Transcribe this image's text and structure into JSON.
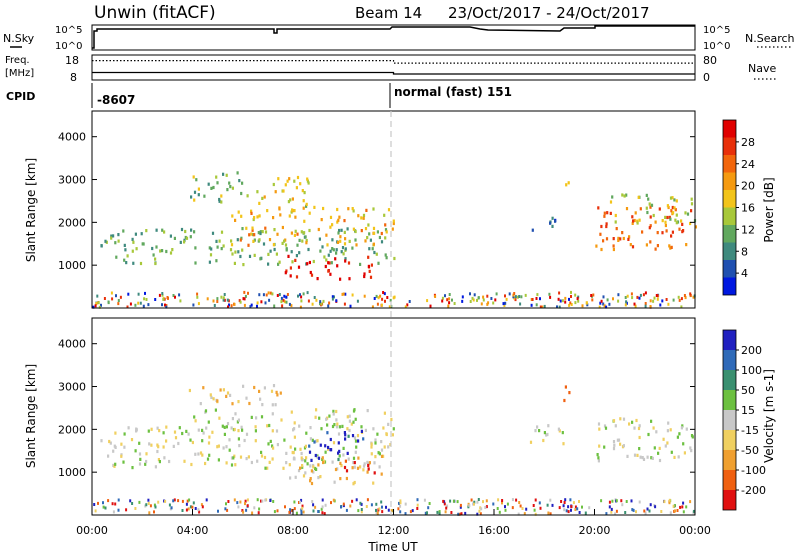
{
  "header": {
    "title": "Unwin (fitACF)",
    "beam": "Beam 14",
    "dates": "23/Oct/2017 - 24/Oct/2017"
  },
  "status_panels": {
    "nsky_label": "N.Sky",
    "nsearch_label": "N.Search",
    "freq_label_line1": "Freq.",
    "freq_label_line2": "[MHz]",
    "nave_label": "Nave",
    "cpid_label": "CPID",
    "nsky_ticks": [
      "10^5",
      "10^0"
    ],
    "nsearch_ticks": [
      "10^5",
      "10^0"
    ],
    "freq_ticks": [
      "18",
      "8"
    ],
    "nave_ticks": [
      "80",
      "0"
    ],
    "cpid_values": [
      {
        "text": "-8607",
        "start_hour": 0
      },
      {
        "text": "normal (fast) 151",
        "start_hour": 12
      }
    ],
    "freq_series": [
      {
        "hour": 0,
        "mhz": 11.0
      },
      {
        "hour": 12,
        "mhz": 11.0
      },
      {
        "hour": 12,
        "mhz": 10.4
      },
      {
        "hour": 24,
        "mhz": 10.4
      }
    ],
    "nave_series": [
      {
        "hour": 0,
        "nave": 62
      },
      {
        "hour": 12,
        "nave": 62
      },
      {
        "hour": 12,
        "nave": 54
      },
      {
        "hour": 24,
        "nave": 54
      }
    ]
  },
  "chart_data": [
    {
      "type": "heatmap",
      "name": "power",
      "xlabel": "",
      "ylabel": "Slant Range [km]",
      "xlim": [
        0,
        24
      ],
      "ylim": [
        0,
        4600
      ],
      "yticks": [
        "1000",
        "2000",
        "3000",
        "4000"
      ],
      "colorbar_label": "Power [dB]",
      "colorbar_ticks": [
        "4",
        "8",
        "12",
        "16",
        "20",
        "24",
        "28"
      ],
      "colorbar_colors": [
        "#0018e0",
        "#2050b0",
        "#3f8a7e",
        "#61a85e",
        "#a8c83a",
        "#f2c41a",
        "#f59a10",
        "#f2660c",
        "#e8300a",
        "#e00000"
      ],
      "regions": [
        {
          "x0": 0.3,
          "x1": 12.0,
          "y0": 1050,
          "y1": 1900,
          "level": 0.35
        },
        {
          "x0": 5.5,
          "x1": 12.0,
          "y0": 1500,
          "y1": 2400,
          "level": 0.6
        },
        {
          "x0": 7.6,
          "x1": 11.2,
          "y0": 700,
          "y1": 1250,
          "level": 0.95
        },
        {
          "x0": 6.5,
          "x1": 8.8,
          "y0": 2400,
          "y1": 3100,
          "level": 0.5
        },
        {
          "x0": 3.8,
          "x1": 6.2,
          "y0": 2500,
          "y1": 3200,
          "level": 0.4
        },
        {
          "x0": 17.5,
          "x1": 18.5,
          "y0": 1800,
          "y1": 2200,
          "level": 0.15
        },
        {
          "x0": 18.6,
          "x1": 19.0,
          "y0": 2700,
          "y1": 3000,
          "level": 0.6
        },
        {
          "x0": 20.0,
          "x1": 24.0,
          "y0": 1400,
          "y1": 2400,
          "level": 0.75
        },
        {
          "x0": 20.5,
          "x1": 24.0,
          "y0": 2000,
          "y1": 2700,
          "level": 0.45
        }
      ]
    },
    {
      "type": "heatmap",
      "name": "velocity",
      "xlabel": "Time UT",
      "ylabel": "Slant Range [km]",
      "xlim": [
        0,
        24
      ],
      "ylim": [
        0,
        4600
      ],
      "xticks": [
        "00:00",
        "04:00",
        "08:00",
        "12:00",
        "16:00",
        "20:00",
        "00:00"
      ],
      "yticks": [
        "1000",
        "2000",
        "3000",
        "4000"
      ],
      "colorbar_label": "Velocity [m s-1]",
      "colorbar_ticks": [
        "200",
        "100",
        "50",
        "15",
        "-15",
        "-50",
        "-100",
        "-200"
      ],
      "colorbar_colors": [
        "#2020c0",
        "#2f6ab8",
        "#3a9070",
        "#6cc040",
        "#c8c8c8",
        "#f0d060",
        "#f0a030",
        "#f06010",
        "#e01010"
      ],
      "regions": [
        {
          "x0": 0.3,
          "x1": 12.0,
          "y0": 1100,
          "y1": 2100,
          "level": 0.5
        },
        {
          "x0": 4.0,
          "x1": 12.0,
          "y0": 2000,
          "y1": 2500,
          "level": 0.5
        },
        {
          "x0": 3.8,
          "x1": 7.5,
          "y0": 2600,
          "y1": 3100,
          "level": 0.6
        },
        {
          "x0": 7.8,
          "x1": 11.5,
          "y0": 750,
          "y1": 1450,
          "level": 0.62
        },
        {
          "x0": 10.0,
          "x1": 11.4,
          "y0": 1000,
          "y1": 1300,
          "level": 0.95
        },
        {
          "x0": 8.6,
          "x1": 10.8,
          "y0": 1300,
          "y1": 2000,
          "level": 0.1
        },
        {
          "x0": 18.6,
          "x1": 19.1,
          "y0": 2700,
          "y1": 3100,
          "level": 0.92
        },
        {
          "x0": 20.0,
          "x1": 24.0,
          "y0": 1300,
          "y1": 2300,
          "level": 0.5
        },
        {
          "x0": 17.3,
          "x1": 18.8,
          "y0": 1700,
          "y1": 2200,
          "level": 0.5
        }
      ]
    }
  ]
}
